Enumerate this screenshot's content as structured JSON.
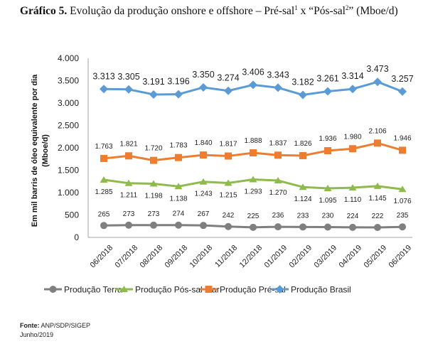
{
  "title": {
    "bold": "Gráfico 5.",
    "text": " Evolução da produção onshore e offshore – Pré-sal",
    "sup1": "1",
    "mid": " x “Pós-sal",
    "sup2": "2",
    "end": "” (Mboe/d)"
  },
  "footer": {
    "source_label": "Fonte:",
    "source_value": " ANP/SDP/SIGEP",
    "date": "Junho/2019"
  },
  "chart_data": {
    "type": "line",
    "title": "Evolução da produção onshore e offshore – Pré-sal x Pós-sal (Mboe/d)",
    "xlabel": "",
    "ylabel": "Em mil barris de óleo equivalente por dia (Mboe/d)",
    "ylabel_lines": [
      "Em mil barris de óleo equivalente por dia",
      "(Mboe/d)"
    ],
    "ylim": [
      0,
      4000
    ],
    "yticks": [
      0,
      500,
      1000,
      1500,
      2000,
      2500,
      3000,
      3500,
      4000
    ],
    "ytick_labels": [
      "0",
      "500",
      "1.000",
      "1.500",
      "2.000",
      "2.500",
      "3.000",
      "3.500",
      "4.000"
    ],
    "grid": false,
    "legend": "bottom",
    "categories": [
      "06/2018",
      "07/2018",
      "08/2018",
      "09/2018",
      "10/2018",
      "11/2018",
      "12/2018",
      "01/2019",
      "02/2019",
      "03/2019",
      "04/2019",
      "05/2019",
      "06/2019"
    ],
    "series": [
      {
        "name": "Produção Terra",
        "color": "#7f7f7f",
        "marker": "circle",
        "label_position": "above",
        "values": [
          265,
          273,
          273,
          274,
          267,
          242,
          225,
          236,
          233,
          230,
          224,
          222,
          235
        ],
        "labels": [
          "265",
          "273",
          "273",
          "274",
          "267",
          "242",
          "225",
          "236",
          "233",
          "230",
          "224",
          "222",
          "235"
        ]
      },
      {
        "name": "Produção Pós-sal Mar",
        "color": "#8fba4c",
        "marker": "triangle",
        "label_position": "below",
        "values": [
          1285,
          1211,
          1198,
          1138,
          1243,
          1215,
          1293,
          1270,
          1124,
          1095,
          1110,
          1145,
          1076
        ],
        "labels": [
          "1.285",
          "1.211",
          "1.198",
          "1.138",
          "1.243",
          "1.215",
          "1.293",
          "1.270",
          "1.124",
          "1.095",
          "1.110",
          "1.145",
          "1.076"
        ]
      },
      {
        "name": "Produção Pré-sal",
        "color": "#ed7d31",
        "marker": "square",
        "label_position": "above",
        "values": [
          1763,
          1821,
          1720,
          1783,
          1840,
          1817,
          1888,
          1837,
          1826,
          1936,
          1980,
          2106,
          1946
        ],
        "labels": [
          "1.763",
          "1.821",
          "1.720",
          "1.783",
          "1.840",
          "1.817",
          "1.888",
          "1.837",
          "1.826",
          "1.936",
          "1.980",
          "2.106",
          "1.946"
        ]
      },
      {
        "name": "Produção Brasil",
        "color": "#5b9bd5",
        "marker": "diamond",
        "label_position": "above",
        "values": [
          3313,
          3305,
          3191,
          3196,
          3350,
          3274,
          3406,
          3343,
          3182,
          3261,
          3314,
          3473,
          3257
        ],
        "labels": [
          "3.313",
          "3.305",
          "3.191",
          "3.196",
          "3.350",
          "3.274",
          "3.406",
          "3.343",
          "3.182",
          "3.261",
          "3.314",
          "3.473",
          "3.257"
        ]
      }
    ]
  }
}
